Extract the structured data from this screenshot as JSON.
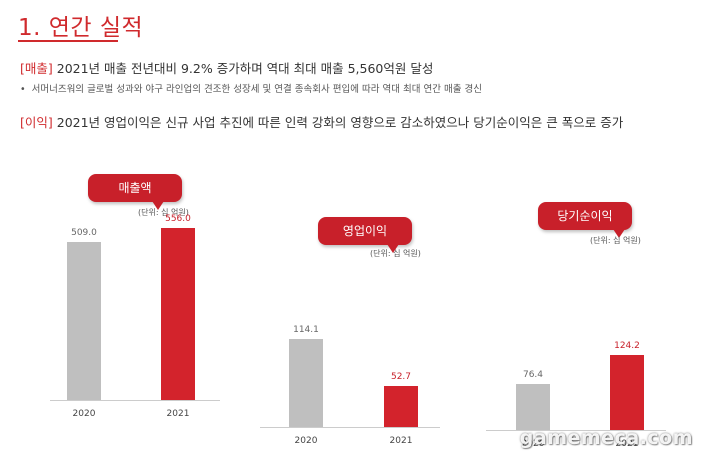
{
  "heading": "1. 연간 실적",
  "summary": {
    "sales_tag": "[매출]",
    "sales_text": " 2021년 매출 전년대비 9.2% 증가하며 역대 최대 매출 5,560억원 달성",
    "sales_bullet": "•",
    "sales_detail": "서머너즈워의 글로벌 성과와 야구 라인업의 견조한 성장세 및 연결 종속회사 편입에 따라 역대 최대 연간 매출 경신",
    "profit_tag": "[이익]",
    "profit_text": " 2021년 영업이익은 신규 사업 추진에 따른 인력 강화의 영향으로 감소하였으나 당기순이익은 큰 폭으로 증가"
  },
  "colors": {
    "accent": "#c8202a",
    "prior_year_bar": "#bfbfbf",
    "current_year_bar": "#d3232c"
  },
  "chart_data": [
    {
      "type": "bar",
      "title": "매출액",
      "unit": "(단위: 십 억원)",
      "categories": [
        "2020",
        "2021"
      ],
      "values": [
        509.0,
        556.0
      ],
      "value_labels": [
        "509.0",
        "556.0"
      ]
    },
    {
      "type": "bar",
      "title": "영업이익",
      "unit": "(단위: 십 억원)",
      "categories": [
        "2020",
        "2021"
      ],
      "values": [
        114.1,
        52.7
      ],
      "value_labels": [
        "114.1",
        "52.7"
      ]
    },
    {
      "type": "bar",
      "title": "당기순이익",
      "unit": "(단위: 십 억원)",
      "categories": [
        "2020",
        "2021"
      ],
      "values": [
        76.4,
        124.2
      ],
      "value_labels": [
        "76.4",
        "124.2"
      ]
    }
  ],
  "watermark": "gamemeca.com"
}
